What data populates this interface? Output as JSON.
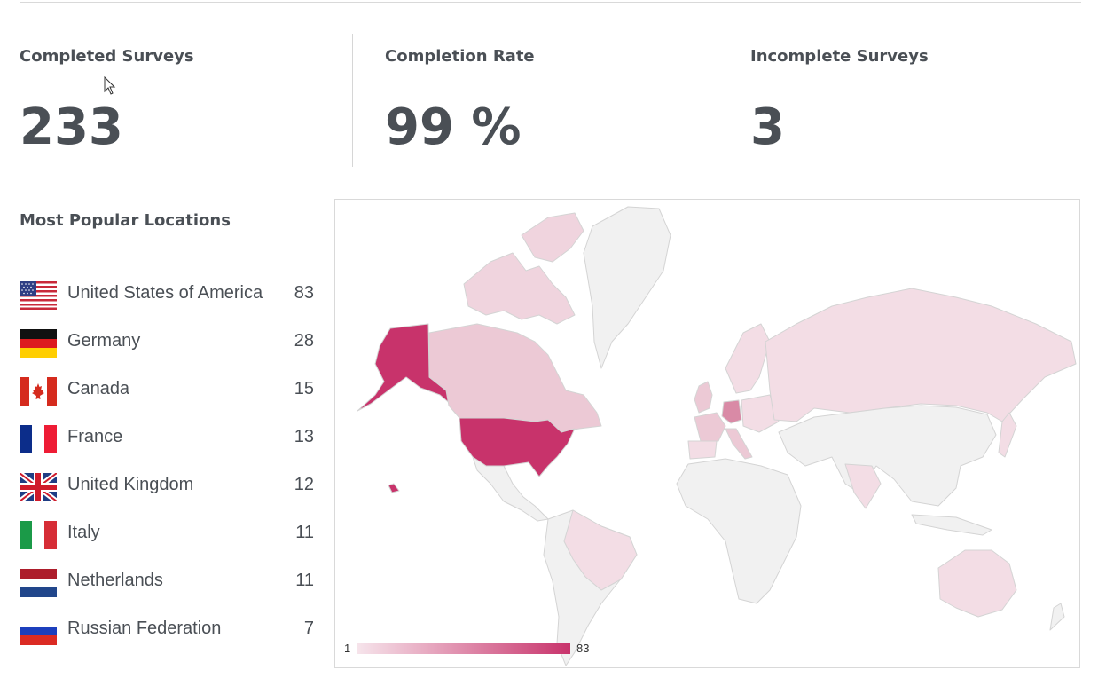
{
  "kpis": [
    {
      "title": "Completed Surveys",
      "value": "233"
    },
    {
      "title": "Completion Rate",
      "value": "99 %"
    },
    {
      "title": "Incomplete Surveys",
      "value": "3"
    }
  ],
  "locations": {
    "title": "Most Popular Locations",
    "items": [
      {
        "name": "United States of America",
        "count": "83",
        "flag": "us-flag-icon"
      },
      {
        "name": "Germany",
        "count": "28",
        "flag": "de-flag-icon"
      },
      {
        "name": "Canada",
        "count": "15",
        "flag": "ca-flag-icon"
      },
      {
        "name": "France",
        "count": "13",
        "flag": "fr-flag-icon"
      },
      {
        "name": "United Kingdom",
        "count": "12",
        "flag": "gb-flag-icon"
      },
      {
        "name": "Italy",
        "count": "11",
        "flag": "it-flag-icon"
      },
      {
        "name": "Netherlands",
        "count": "11",
        "flag": "nl-flag-icon"
      },
      {
        "name": "Russian Federation",
        "count": "7",
        "flag": "ru-flag-icon"
      }
    ]
  },
  "map": {
    "legend_min": "1",
    "legend_max": "83",
    "color_low": "#f3dde5",
    "color_high": "#c8336b",
    "color_none": "#f1f1f1"
  }
}
